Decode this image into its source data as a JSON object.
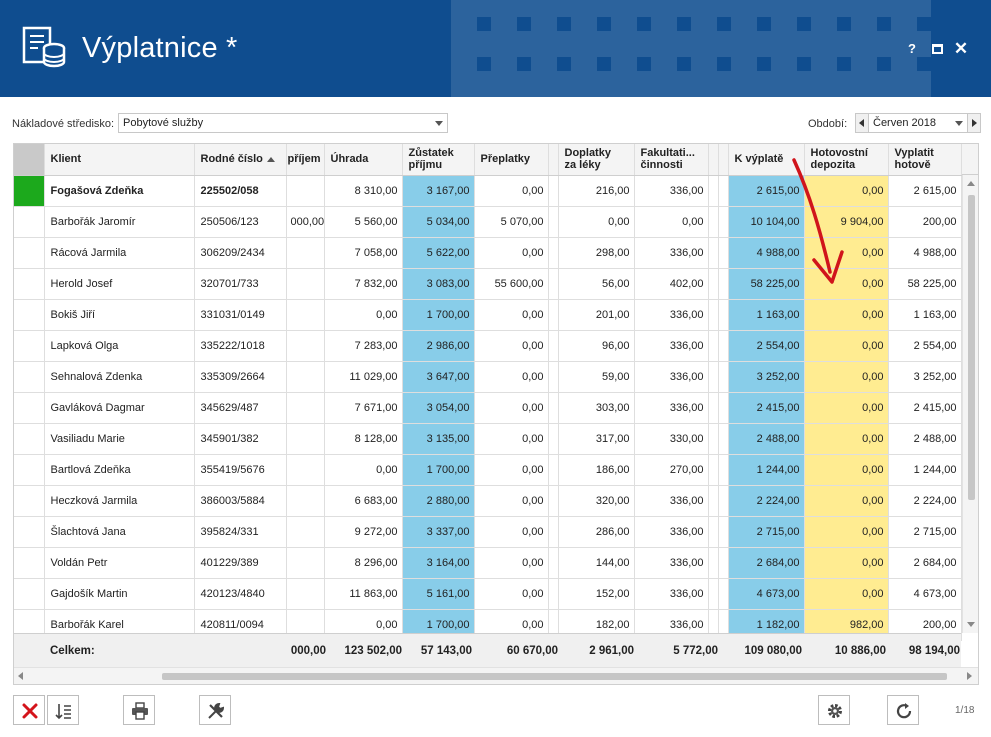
{
  "window": {
    "title": "Výplatnice *",
    "help_label": "?",
    "close_label": "✕"
  },
  "filters": {
    "cost_center_label": "Nákladové středisko:",
    "cost_center_value": "Pobytové služby",
    "period_label": "Období:",
    "period_value": "Červen 2018"
  },
  "grid": {
    "columns": {
      "client": "Klient",
      "birth_number": "Rodné číslo",
      "income": "příjem",
      "payment": "Úhrada",
      "remaining_l1": "Zůstatek",
      "remaining_l2": "příjmu",
      "overpayments": "Přeplatky",
      "drugs_l1": "Doplatky",
      "drugs_l2": "za léky",
      "optional_l1": "Fakultati...",
      "optional_l2": "činnosti",
      "to_pay": "K výplatě",
      "cash_l1": "Hotovostní",
      "cash_l2": "depozita",
      "pay_l1": "Vyplatit",
      "pay_l2": "hotově"
    },
    "rows": [
      {
        "client": "Fogašová Zdeňka",
        "rc": "225502/058",
        "income": "",
        "payment": "8 310,00",
        "remaining": "3 167,00",
        "overpay": "0,00",
        "drugs": "216,00",
        "optional": "336,00",
        "to_pay": "2 615,00",
        "cash": "0,00",
        "pay_cash": "2 615,00"
      },
      {
        "client": "Barbořák Jaromír",
        "rc": "250506/123",
        "income": "000,00",
        "payment": "5 560,00",
        "remaining": "5 034,00",
        "overpay": "5 070,00",
        "drugs": "0,00",
        "optional": "0,00",
        "to_pay": "10 104,00",
        "cash": "9 904,00",
        "pay_cash": "200,00"
      },
      {
        "client": "Rácová Jarmila",
        "rc": "306209/2434",
        "income": "",
        "payment": "7 058,00",
        "remaining": "5 622,00",
        "overpay": "0,00",
        "drugs": "298,00",
        "optional": "336,00",
        "to_pay": "4 988,00",
        "cash": "0,00",
        "pay_cash": "4 988,00"
      },
      {
        "client": "Herold Josef",
        "rc": "320701/733",
        "income": "",
        "payment": "7 832,00",
        "remaining": "3 083,00",
        "overpay": "55 600,00",
        "drugs": "56,00",
        "optional": "402,00",
        "to_pay": "58 225,00",
        "cash": "0,00",
        "pay_cash": "58 225,00"
      },
      {
        "client": "Bokiš Jiří",
        "rc": "331031/0149",
        "income": "",
        "payment": "0,00",
        "remaining": "1 700,00",
        "overpay": "0,00",
        "drugs": "201,00",
        "optional": "336,00",
        "to_pay": "1 163,00",
        "cash": "0,00",
        "pay_cash": "1 163,00"
      },
      {
        "client": "Lapková Olga",
        "rc": "335222/1018",
        "income": "",
        "payment": "7 283,00",
        "remaining": "2 986,00",
        "overpay": "0,00",
        "drugs": "96,00",
        "optional": "336,00",
        "to_pay": "2 554,00",
        "cash": "0,00",
        "pay_cash": "2 554,00"
      },
      {
        "client": "Sehnalová Zdenka",
        "rc": "335309/2664",
        "income": "",
        "payment": "11 029,00",
        "remaining": "3 647,00",
        "overpay": "0,00",
        "drugs": "59,00",
        "optional": "336,00",
        "to_pay": "3 252,00",
        "cash": "0,00",
        "pay_cash": "3 252,00"
      },
      {
        "client": "Gavláková Dagmar",
        "rc": "345629/487",
        "income": "",
        "payment": "7 671,00",
        "remaining": "3 054,00",
        "overpay": "0,00",
        "drugs": "303,00",
        "optional": "336,00",
        "to_pay": "2 415,00",
        "cash": "0,00",
        "pay_cash": "2 415,00"
      },
      {
        "client": "Vasiliadu Marie",
        "rc": "345901/382",
        "income": "",
        "payment": "8 128,00",
        "remaining": "3 135,00",
        "overpay": "0,00",
        "drugs": "317,00",
        "optional": "330,00",
        "to_pay": "2 488,00",
        "cash": "0,00",
        "pay_cash": "2 488,00"
      },
      {
        "client": "Bartlová Zdeňka",
        "rc": "355419/5676",
        "income": "",
        "payment": "0,00",
        "remaining": "1 700,00",
        "overpay": "0,00",
        "drugs": "186,00",
        "optional": "270,00",
        "to_pay": "1 244,00",
        "cash": "0,00",
        "pay_cash": "1 244,00"
      },
      {
        "client": "Heczková Jarmila",
        "rc": "386003/5884",
        "income": "",
        "payment": "6 683,00",
        "remaining": "2 880,00",
        "overpay": "0,00",
        "drugs": "320,00",
        "optional": "336,00",
        "to_pay": "2 224,00",
        "cash": "0,00",
        "pay_cash": "2 224,00"
      },
      {
        "client": "Šlachtová Jana",
        "rc": "395824/331",
        "income": "",
        "payment": "9 272,00",
        "remaining": "3 337,00",
        "overpay": "0,00",
        "drugs": "286,00",
        "optional": "336,00",
        "to_pay": "2 715,00",
        "cash": "0,00",
        "pay_cash": "2 715,00"
      },
      {
        "client": "Voldán Petr",
        "rc": "401229/389",
        "income": "",
        "payment": "8 296,00",
        "remaining": "3 164,00",
        "overpay": "0,00",
        "drugs": "144,00",
        "optional": "336,00",
        "to_pay": "2 684,00",
        "cash": "0,00",
        "pay_cash": "2 684,00"
      },
      {
        "client": "Gajdošík Martin",
        "rc": "420123/4840",
        "income": "",
        "payment": "11 863,00",
        "remaining": "5 161,00",
        "overpay": "0,00",
        "drugs": "152,00",
        "optional": "336,00",
        "to_pay": "4 673,00",
        "cash": "0,00",
        "pay_cash": "4 673,00"
      },
      {
        "client": "Barbořák Karel",
        "rc": "420811/0094",
        "income": "",
        "payment": "0,00",
        "remaining": "1 700,00",
        "overpay": "0,00",
        "drugs": "182,00",
        "optional": "336,00",
        "to_pay": "1 182,00",
        "cash": "982,00",
        "pay_cash": "200,00"
      }
    ],
    "totals": {
      "label": "Celkem:",
      "income": "000,00",
      "payment": "123 502,00",
      "remaining": "57 143,00",
      "overpay": "60 670,00",
      "drugs": "2 961,00",
      "optional": "5 772,00",
      "to_pay": "109 080,00",
      "cash": "10 886,00",
      "pay_cash": "98 194,00"
    }
  },
  "pager": "1/18",
  "colors": {
    "title_bar": "#0f4d8f",
    "highlight_blue": "#88cde9",
    "highlight_yellow": "#ffec91",
    "active_indicator": "#1ca91c",
    "annotation_arrow": "#d0141b"
  }
}
